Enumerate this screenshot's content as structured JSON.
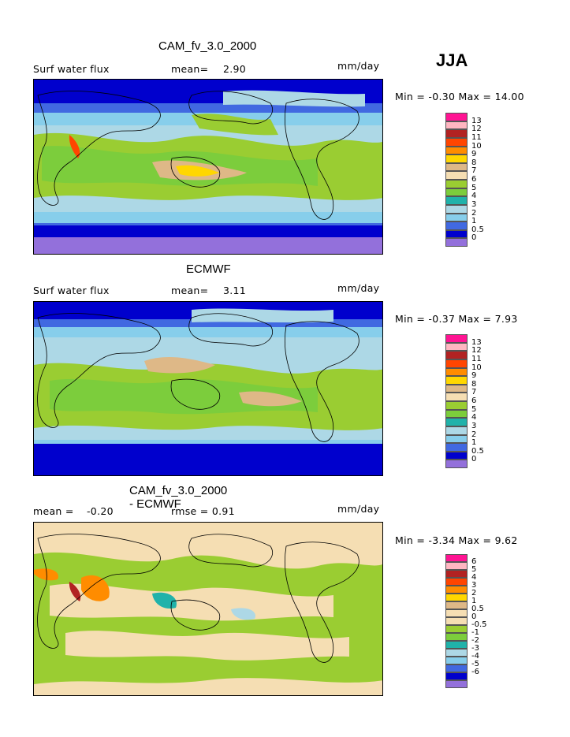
{
  "season": "JJA",
  "panels": [
    {
      "title": "CAM_fv_3.0_2000",
      "left_label": "Surf water flux",
      "mean_label": "mean=",
      "mean_value": "2.90",
      "units": "mm/day",
      "minmax": "Min =   -0.30 Max =   14.00",
      "levels": [
        "13",
        "12",
        "11",
        "10",
        "9",
        "8",
        "7",
        "6",
        "5",
        "4",
        "3",
        "2",
        "1",
        "0.5",
        "0"
      ],
      "palette": "abs"
    },
    {
      "title": "ECMWF",
      "left_label": "Surf water flux",
      "mean_label": "mean=",
      "mean_value": "3.11",
      "units": "mm/day",
      "minmax": "Min =   -0.37 Max =    7.93",
      "levels": [
        "13",
        "12",
        "11",
        "10",
        "9",
        "8",
        "7",
        "6",
        "5",
        "4",
        "3",
        "2",
        "1",
        "0.5",
        "0"
      ],
      "palette": "abs"
    },
    {
      "title": "CAM_fv_3.0_2000 - ECMWF",
      "left_label": "mean =",
      "mean_label": "-0.20",
      "mean_value": "rmse =   0.91",
      "units": "mm/day",
      "minmax": "Min =   -3.34 Max =    9.62",
      "levels": [
        "6",
        "5",
        "4",
        "3",
        "2",
        "1",
        "0.5",
        "0",
        "-0.5",
        "-1",
        "-2",
        "-3",
        "-4",
        "-5",
        "-6"
      ],
      "palette": "diff"
    }
  ],
  "colors": {
    "abs": [
      "#ff1493",
      "#ffb6c1",
      "#b22222",
      "#ff4500",
      "#ff8c00",
      "#ffd700",
      "#deb887",
      "#f5deb3",
      "#9acd32",
      "#7ccd3c",
      "#20b2aa",
      "#add8e6",
      "#87ceeb",
      "#4169e1",
      "#0000cd",
      "#9370db"
    ],
    "diff": [
      "#ff1493",
      "#ffb6c1",
      "#b22222",
      "#ff4500",
      "#ff8c00",
      "#ffd700",
      "#deb887",
      "#f5deb3",
      "#f5deb3",
      "#9acd32",
      "#7ccd3c",
      "#20b2aa",
      "#add8e6",
      "#87ceeb",
      "#4169e1",
      "#0000cd",
      "#9370db"
    ]
  }
}
